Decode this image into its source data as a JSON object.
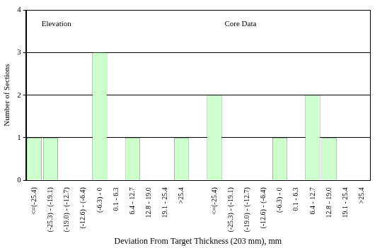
{
  "chart_data": {
    "type": "bar",
    "x_label": "Deviation From Target Thickness (203 mm), mm",
    "y_label": "Number of Sections",
    "annotations": [
      "Elevation",
      "Core Data"
    ],
    "categories": [
      "<=(-25.4)",
      "(-25.3) - (-19.1)",
      "(-19.0) - (-12.7)",
      "(-12.6) - (-6.4)",
      "(-6.3) - 0",
      "0.1 - 6.3",
      "6.4 - 12.7",
      "12.8 - 19.0",
      "19.1 - 25.4",
      ">25.4",
      null,
      "<=(-25.4)",
      "(-25.3) - (-19.1)",
      "(-19.0) - (-12.7)",
      "(-12.6) - (-6.4)",
      "(-6.3) - 0",
      "0.1 - 6.3",
      "6.4 - 12.7",
      "12.8 - 19.0",
      "19.1 - 25.4",
      ">25.4"
    ],
    "values": [
      1,
      1,
      0,
      0,
      3,
      0,
      1,
      0,
      0,
      1,
      null,
      2,
      0,
      0,
      0,
      1,
      0,
      2,
      1,
      0,
      0
    ],
    "color": "#ccffcc",
    "ylim": [
      0,
      4
    ],
    "yticks": [
      0,
      1,
      2,
      3,
      4
    ],
    "grid": true
  }
}
